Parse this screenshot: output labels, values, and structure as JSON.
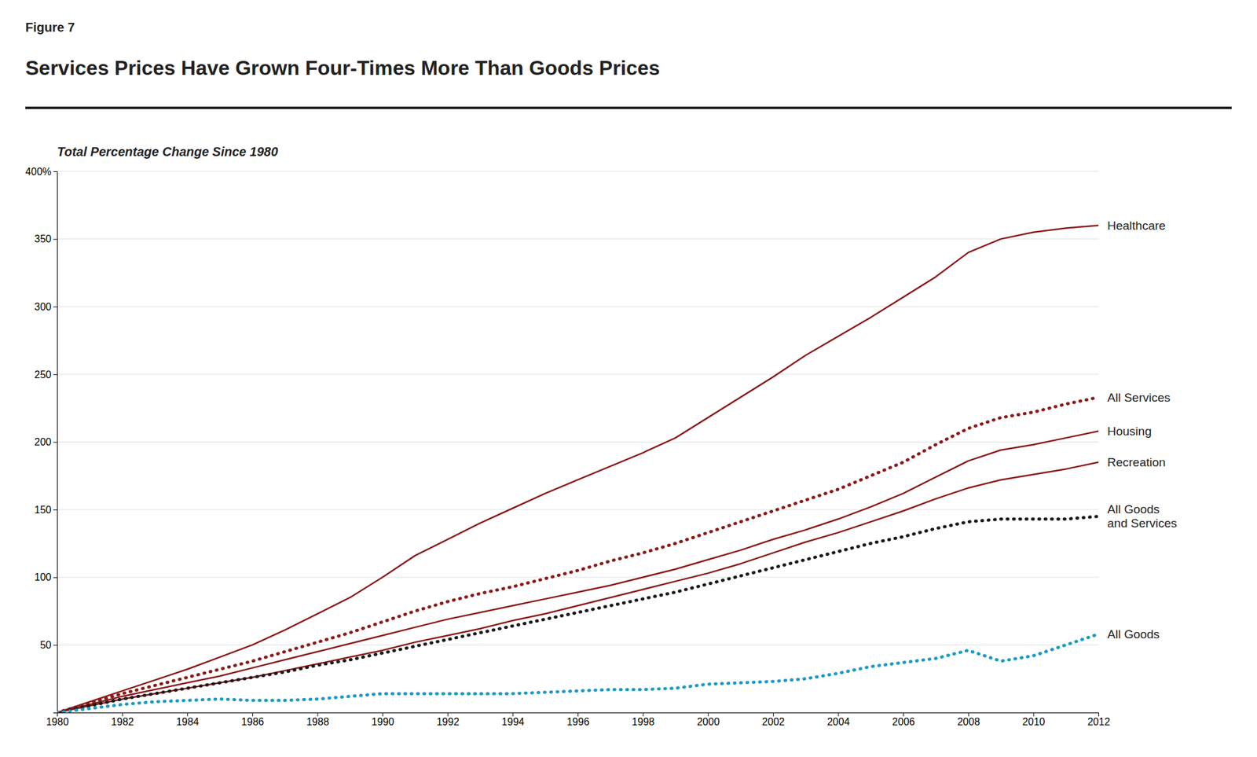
{
  "chart_data": {
    "type": "line",
    "annotations": [
      "Figure 7"
    ],
    "title": "Services Prices Have Grown Four-Times More Than Goods Prices",
    "subtitle": "Total Percentage Change Since 1980",
    "x": [
      1980,
      1981,
      1982,
      1983,
      1984,
      1985,
      1986,
      1987,
      1988,
      1989,
      1990,
      1991,
      1992,
      1993,
      1994,
      1995,
      1996,
      1997,
      1998,
      1999,
      2000,
      2001,
      2002,
      2003,
      2004,
      2005,
      2006,
      2007,
      2008,
      2009,
      2010,
      2011,
      2012
    ],
    "series": [
      {
        "name": "Healthcare",
        "color": "#8B1A1A",
        "line_style": "solid",
        "values": [
          0,
          8,
          16,
          24,
          32,
          41,
          50,
          61,
          73,
          85,
          100,
          116,
          128,
          140,
          151,
          162,
          172,
          182,
          192,
          203,
          218,
          233,
          248,
          264,
          278,
          292,
          307,
          322,
          340,
          350,
          355,
          358,
          360
        ]
      },
      {
        "name": "All Services",
        "color": "#8B1A1A",
        "line_style": "dotted",
        "values": [
          0,
          7,
          14,
          20,
          26,
          32,
          38,
          45,
          52,
          59,
          67,
          75,
          82,
          88,
          93,
          99,
          105,
          112,
          118,
          125,
          133,
          141,
          149,
          157,
          165,
          175,
          185,
          198,
          210,
          218,
          222,
          228,
          233
        ]
      },
      {
        "name": "Housing",
        "color": "#8B1A1A",
        "line_style": "solid",
        "values": [
          0,
          6,
          12,
          17,
          22,
          27,
          33,
          39,
          45,
          51,
          57,
          63,
          69,
          74,
          79,
          84,
          89,
          94,
          100,
          106,
          113,
          120,
          128,
          135,
          143,
          152,
          162,
          174,
          186,
          194,
          198,
          203,
          208
        ]
      },
      {
        "name": "Recreation",
        "color": "#8B1A1A",
        "line_style": "solid",
        "values": [
          0,
          5,
          10,
          14,
          18,
          22,
          26,
          31,
          36,
          41,
          46,
          52,
          57,
          62,
          68,
          73,
          79,
          85,
          91,
          97,
          103,
          110,
          118,
          126,
          133,
          141,
          149,
          158,
          166,
          172,
          176,
          180,
          185
        ]
      },
      {
        "name": "All Goods\nand Services",
        "color": "#1A1A1A",
        "line_style": "dotted",
        "values": [
          0,
          5,
          10,
          14,
          18,
          22,
          26,
          30,
          35,
          39,
          44,
          49,
          54,
          59,
          64,
          69,
          74,
          79,
          84,
          89,
          95,
          101,
          107,
          113,
          119,
          125,
          130,
          136,
          141,
          143,
          143,
          143,
          145
        ]
      },
      {
        "name": "All Goods",
        "color": "#1A9BC4",
        "line_style": "dotted",
        "values": [
          0,
          3,
          6,
          8,
          9,
          10,
          9,
          9,
          10,
          12,
          14,
          14,
          14,
          14,
          14,
          15,
          16,
          17,
          17,
          18,
          21,
          22,
          23,
          25,
          29,
          34,
          37,
          40,
          46,
          38,
          42,
          50,
          58
        ]
      }
    ],
    "ylim": [
      0,
      400
    ],
    "yticks": [
      {
        "value": 0,
        "label": null
      },
      50,
      100,
      150,
      200,
      250,
      300,
      350,
      {
        "value": 400,
        "label": "400%"
      }
    ],
    "xlim": [
      1980,
      2012
    ],
    "xticks": [
      1980,
      1982,
      1984,
      1986,
      1988,
      1990,
      1992,
      1994,
      1996,
      1998,
      2000,
      2002,
      2004,
      2006,
      2008,
      2010,
      2012
    ],
    "grid": "y"
  }
}
